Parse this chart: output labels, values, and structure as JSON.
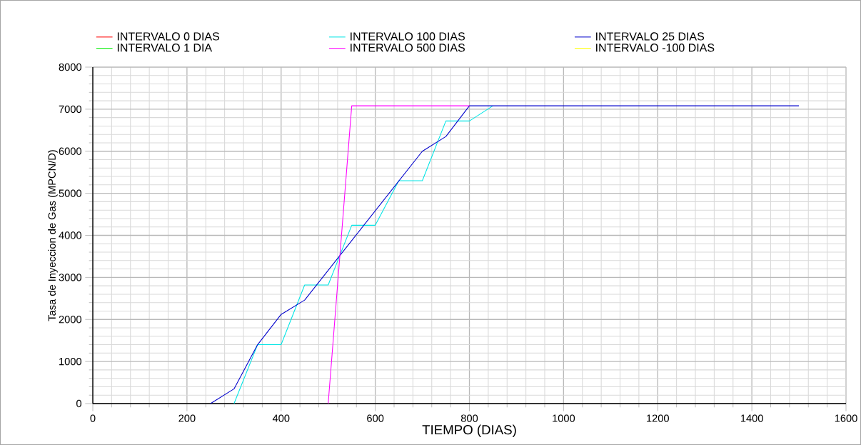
{
  "chart_data": {
    "type": "line",
    "xlabel": "TIEMPO (DIAS)",
    "ylabel": "Tasa de Inyeccion de Gas (MPCN/D)",
    "xlim": [
      0,
      1600
    ],
    "xticks": [
      0,
      200,
      400,
      600,
      800,
      1000,
      1200,
      1400,
      1600
    ],
    "ylim": [
      0,
      8000
    ],
    "yticks": [
      0,
      1000,
      2000,
      3000,
      4000,
      5000,
      6000,
      7000,
      8000
    ],
    "grid": true,
    "legend": "top",
    "marker": "none",
    "series": [
      {
        "name": "INTERVALO 0 DIAS",
        "color": "#ff0000"
      },
      {
        "name": "INTERVALO 100 DIAS",
        "color": "#00e5e5",
        "x": [
          300,
          350,
          400,
          450,
          500,
          550,
          600,
          650,
          700,
          750,
          800,
          850
        ],
        "values": [
          0,
          1400,
          1400,
          2820,
          2820,
          4240,
          4240,
          5300,
          5300,
          6720,
          6720,
          7080
        ]
      },
      {
        "name": "INTERVALO 25 DIAS",
        "color": "#0000cc",
        "x": [
          250,
          300,
          350,
          400,
          450,
          700,
          750,
          800,
          1500
        ],
        "values": [
          0,
          350,
          1400,
          2120,
          2460,
          6000,
          6350,
          7080,
          7080
        ]
      },
      {
        "name": "INTERVALO 1 DIA",
        "color": "#00ee00"
      },
      {
        "name": "INTERVALO 500 DIAS",
        "color": "#ff00ff",
        "x": [
          500,
          550,
          800
        ],
        "values": [
          0,
          7080,
          7080
        ]
      },
      {
        "name": "INTERVALO -100 DIAS",
        "color": "#ffff00"
      }
    ]
  }
}
